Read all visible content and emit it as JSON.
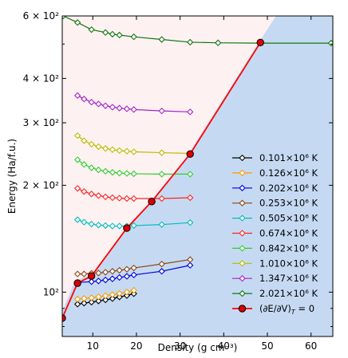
{
  "chart_data": {
    "type": "line",
    "xlabel": "Density (g cm⁻³)",
    "ylabel": "Energy (Ha/f.u.)",
    "xlim": [
      3,
      65
    ],
    "ylim": [
      75,
      600
    ],
    "yscale": "log",
    "grid": false,
    "legend_position": "lower-right",
    "x_ticks": [
      10,
      20,
      30,
      40,
      50,
      60
    ],
    "x_tick_labels": [
      "10",
      "20",
      "30",
      "40",
      "50",
      "60"
    ],
    "y_major_ticks": [
      100,
      200,
      300,
      400,
      600
    ],
    "y_tick_labels": [
      "10²",
      "2 × 10²",
      "3 × 10²",
      "4 × 10²",
      "6 × 10²"
    ],
    "y_minor_ticks": [
      80,
      90,
      500
    ],
    "regions": {
      "upper_color": "#fdf1f1",
      "lower_color": "#c5daf2",
      "boundary": [
        [
          3,
          88.5
        ],
        [
          6,
          108
        ],
        [
          10,
          112
        ],
        [
          18,
          152
        ],
        [
          23.5,
          180
        ],
        [
          32,
          245
        ],
        [
          48,
          505
        ],
        [
          52,
          600
        ]
      ]
    },
    "series": [
      {
        "name": "0.101×10⁶ K",
        "color": "#000000",
        "x": [
          6.5,
          8.0,
          9.7,
          11.3,
          12.9,
          14.5,
          16.1,
          17.8,
          19.4
        ],
        "y": [
          92.5,
          93.1,
          93.7,
          94.4,
          95.1,
          95.9,
          96.9,
          97.8,
          99.0
        ]
      },
      {
        "name": "0.126×10⁶ K",
        "color": "#ff9900",
        "x": [
          6.5,
          8.0,
          9.7,
          11.3,
          12.9,
          14.5,
          16.1,
          17.8,
          19.4
        ],
        "y": [
          95.6,
          96.0,
          96.4,
          97.0,
          97.7,
          98.4,
          99.1,
          100.0,
          101.2
        ]
      },
      {
        "name": "0.202×10⁶ K",
        "color": "#0000dd",
        "x": [
          6.5,
          9.7,
          11.3,
          12.9,
          14.5,
          16.1,
          17.8,
          19.4,
          25.8,
          32.3
        ],
        "y": [
          106.5,
          107.0,
          107.5,
          108.2,
          109.0,
          110.0,
          110.8,
          111.8,
          114.5,
          119.0
        ]
      },
      {
        "name": "0.253×10⁶ K",
        "color": "#8b4513",
        "x": [
          6.5,
          8.0,
          9.7,
          11.3,
          12.9,
          14.5,
          16.1,
          17.8,
          19.4,
          25.8,
          32.3
        ],
        "y": [
          112.5,
          112.5,
          113.0,
          113.2,
          113.8,
          114.5,
          115.2,
          116.0,
          117.0,
          120.0,
          123.5
        ]
      },
      {
        "name": "0.505×10⁶ K",
        "color": "#00bbbb",
        "x": [
          6.5,
          8.0,
          9.7,
          11.3,
          12.9,
          14.5,
          16.1,
          17.8,
          19.4,
          25.8,
          32.3
        ],
        "y": [
          160.0,
          157.5,
          155.5,
          154.5,
          154.0,
          153.5,
          153.5,
          153.5,
          154.0,
          155.0,
          157.0
        ]
      },
      {
        "name": "0.674×10⁶ K",
        "color": "#ff2222",
        "x": [
          6.5,
          8.0,
          9.7,
          11.3,
          12.9,
          14.5,
          16.1,
          17.8,
          19.4,
          25.8,
          32.3
        ],
        "y": [
          196.0,
          192.0,
          189.0,
          187.0,
          185.5,
          184.5,
          184.0,
          183.5,
          183.5,
          183.5,
          184.5
        ]
      },
      {
        "name": "0.842×10⁶ K",
        "color": "#33cc33",
        "x": [
          6.5,
          8.0,
          9.7,
          11.3,
          12.9,
          14.5,
          16.1,
          17.8,
          19.4,
          25.8,
          32.3
        ],
        "y": [
          236.0,
          229.0,
          224.0,
          221.0,
          219.0,
          217.5,
          216.5,
          216.0,
          215.5,
          215.0,
          215.0
        ]
      },
      {
        "name": "1.010×10⁶ K",
        "color": "#bbbb00",
        "x": [
          6.5,
          8.0,
          9.7,
          11.3,
          12.9,
          14.5,
          16.1,
          17.8,
          19.4,
          25.8,
          32.3
        ],
        "y": [
          276.0,
          267.0,
          261.0,
          257.0,
          254.0,
          252.0,
          250.5,
          249.5,
          248.5,
          247.0,
          246.0
        ]
      },
      {
        "name": "1.347×10⁶ K",
        "color": "#aa22cc",
        "x": [
          6.5,
          8.0,
          9.7,
          11.3,
          12.9,
          14.5,
          16.1,
          17.8,
          19.4,
          25.8,
          32.3
        ],
        "y": [
          358.0,
          350.0,
          343.0,
          339.0,
          335.0,
          332.0,
          330.0,
          328.5,
          327.0,
          324.0,
          322.0
        ]
      },
      {
        "name": "2.021×10⁶ K",
        "color": "#117711",
        "x": [
          3.2,
          6.5,
          9.7,
          12.9,
          14.5,
          16.1,
          19.4,
          25.8,
          32.3,
          38.7,
          48.4,
          64.6
        ],
        "y": [
          600.0,
          575.0,
          549.0,
          539.0,
          533.0,
          530.0,
          524.0,
          515.0,
          506.0,
          504.0,
          503.0,
          503.0
        ]
      },
      {
        "name": "(∂E/∂V)",
        "name_subscript": "T",
        "name_suffix": " = 0",
        "color": "#ff0000",
        "marker_fill": "#dd0000",
        "x": [
          3.0,
          6.5,
          9.7,
          17.8,
          23.5,
          32.3,
          48.4
        ],
        "y": [
          84.5,
          106.0,
          111.0,
          151.5,
          180.0,
          245.0,
          505.0
        ]
      }
    ]
  }
}
